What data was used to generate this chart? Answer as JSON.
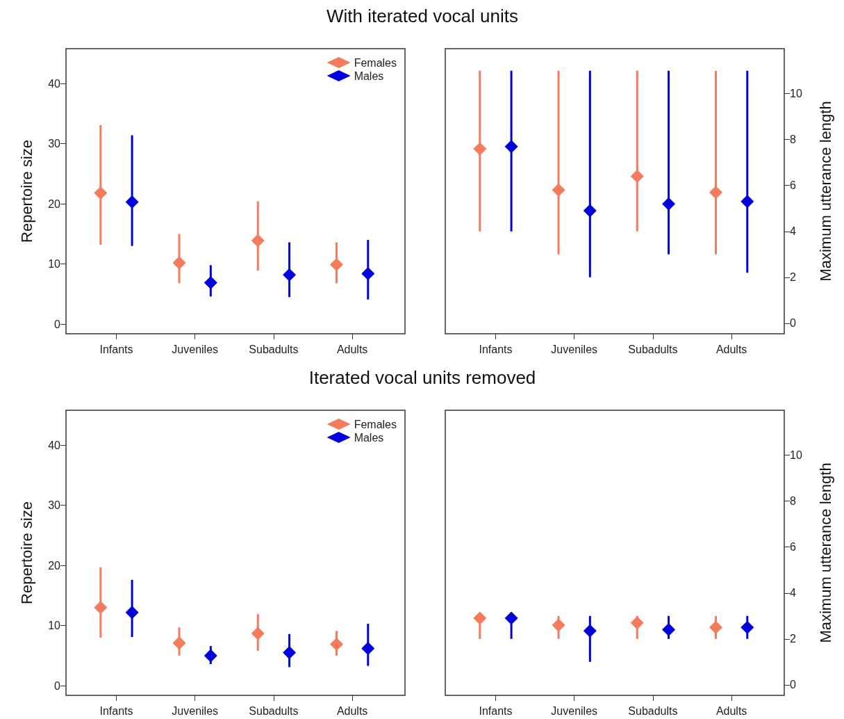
{
  "chart_data": [
    {
      "type": "scatter",
      "title": "With iterated vocal units",
      "categories": [
        "Infants",
        "Juveniles",
        "Subadults",
        "Adults"
      ],
      "ylabel": "Repertoire size",
      "ylim": [
        -1.6,
        45.8
      ],
      "yticks": [
        0,
        10,
        20,
        30,
        40
      ],
      "legend": "top right",
      "marker": "diamond",
      "series": [
        {
          "name": "Females",
          "color": "#f47c5c",
          "values": [
            21.8,
            10.2,
            13.9,
            9.9
          ],
          "errors": [
            [
              13.2,
              33.1
            ],
            [
              6.8,
              15.0
            ],
            [
              8.9,
              20.4
            ],
            [
              6.8,
              13.6
            ]
          ]
        },
        {
          "name": "Males",
          "color": "#0000dd",
          "values": [
            20.3,
            6.9,
            8.2,
            8.4
          ],
          "errors": [
            [
              13.0,
              31.4
            ],
            [
              4.6,
              9.8
            ],
            [
              4.5,
              13.6
            ],
            [
              4.1,
              14.0
            ]
          ]
        }
      ]
    },
    {
      "type": "scatter",
      "categories": [
        "Infants",
        "Juveniles",
        "Subadults",
        "Adults"
      ],
      "y2label": "Maximum utterance length",
      "y2lim": [
        -0.46,
        11.96
      ],
      "y2ticks": [
        0,
        2,
        4,
        6,
        8,
        10
      ],
      "marker": "diamond",
      "series": [
        {
          "color": "#f47c5c",
          "axis": "y2",
          "values": [
            7.6,
            5.8,
            6.4,
            5.7
          ],
          "errors": [
            [
              4,
              11
            ],
            [
              3,
              11
            ],
            [
              4,
              11
            ],
            [
              3,
              11
            ]
          ]
        },
        {
          "color": "#0000dd",
          "axis": "y2",
          "values": [
            7.7,
            4.9,
            5.2,
            5.3
          ],
          "errors": [
            [
              4,
              11
            ],
            [
              2,
              11
            ],
            [
              3,
              11
            ],
            [
              2.2,
              11
            ]
          ]
        }
      ]
    },
    {
      "type": "scatter",
      "title": "Iterated vocal units removed",
      "categories": [
        "Infants",
        "Juveniles",
        "Subadults",
        "Adults"
      ],
      "ylabel": "Repertoire size",
      "ylim": [
        -1.6,
        45.8
      ],
      "yticks": [
        0,
        10,
        20,
        30,
        40
      ],
      "legend": "top right",
      "marker": "diamond",
      "series": [
        {
          "name": "Females",
          "color": "#f47c5c",
          "values": [
            13.0,
            7.1,
            8.7,
            6.9
          ],
          "errors": [
            [
              8.0,
              19.7
            ],
            [
              5.0,
              9.7
            ],
            [
              5.8,
              11.9
            ],
            [
              5.0,
              9.1
            ]
          ]
        },
        {
          "name": "Males",
          "color": "#0000dd",
          "values": [
            12.2,
            5.0,
            5.5,
            6.2
          ],
          "errors": [
            [
              8.1,
              17.6
            ],
            [
              3.6,
              6.6
            ],
            [
              3.1,
              8.6
            ],
            [
              3.3,
              10.3
            ]
          ]
        }
      ]
    },
    {
      "type": "scatter",
      "categories": [
        "Infants",
        "Juveniles",
        "Subadults",
        "Adults"
      ],
      "y2label": "Maximum utterance length",
      "y2lim": [
        -0.46,
        11.96
      ],
      "y2ticks": [
        0,
        2,
        4,
        6,
        8,
        10
      ],
      "marker": "diamond",
      "series": [
        {
          "color": "#f47c5c",
          "axis": "y2",
          "values": [
            2.9,
            2.6,
            2.7,
            2.5
          ],
          "errors": [
            [
              2,
              3
            ],
            [
              2,
              3
            ],
            [
              2,
              3
            ],
            [
              2,
              3
            ]
          ]
        },
        {
          "color": "#0000dd",
          "axis": "y2",
          "values": [
            2.9,
            2.35,
            2.4,
            2.5
          ],
          "errors": [
            [
              2,
              3
            ],
            [
              1,
              3
            ],
            [
              2,
              3
            ],
            [
              2,
              3
            ]
          ]
        }
      ]
    }
  ]
}
